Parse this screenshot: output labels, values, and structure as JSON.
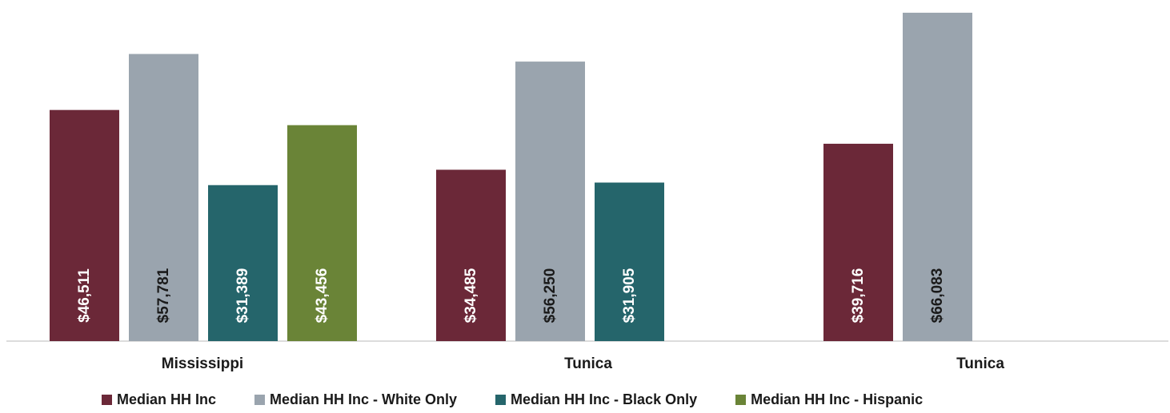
{
  "chart_data": {
    "type": "bar",
    "categories": [
      "Mississippi",
      "Tunica",
      "Tunica"
    ],
    "series": [
      {
        "name": "Median HH Inc",
        "color": "#6b2838",
        "values": [
          46511,
          34485,
          39716
        ],
        "labels": [
          "$46,511",
          "$34,485",
          "$39,716"
        ],
        "label_color": "#ffffff"
      },
      {
        "name": "Median HH Inc - White Only",
        "color": "#9aa4ae",
        "values": [
          57781,
          56250,
          66083
        ],
        "labels": [
          "$57,781",
          "$56,250",
          "$66,083"
        ],
        "label_color": "#1a1a1a"
      },
      {
        "name": "Median HH Inc - Black Only",
        "color": "#25656b",
        "values": [
          31389,
          31905,
          null
        ],
        "labels": [
          "$31,389",
          "$31,905",
          ""
        ],
        "label_color": "#ffffff"
      },
      {
        "name": "Median HH Inc - Hispanic",
        "color": "#6a8437",
        "values": [
          43456,
          null,
          null
        ],
        "labels": [
          "$43,456",
          "",
          ""
        ],
        "label_color": "#ffffff"
      }
    ],
    "title": "",
    "xlabel": "",
    "ylabel": "",
    "ylim": [
      0,
      68000
    ],
    "grid": false,
    "legend_position": "bottom",
    "data_label_orientation": "vertical"
  },
  "legend": {
    "items": [
      {
        "label": "Median HH Inc",
        "color": "#6b2838"
      },
      {
        "label": "Median HH Inc - White Only",
        "color": "#9aa4ae"
      },
      {
        "label": "Median HH Inc - Black Only",
        "color": "#25656b"
      },
      {
        "label": "Median HH Inc - Hispanic",
        "color": "#6a8437"
      }
    ]
  }
}
